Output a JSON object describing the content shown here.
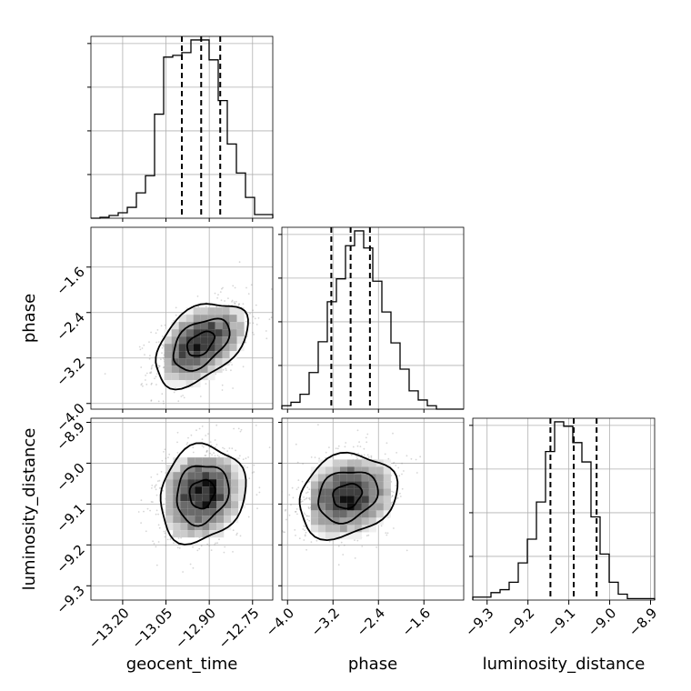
{
  "chart_data": {
    "type": "corner",
    "parameters": [
      "geocent_time",
      "phase",
      "luminosity_distance"
    ],
    "ranges": {
      "geocent_time": [
        -13.31,
        -12.68
      ],
      "phase": [
        -4.1,
        -0.9
      ],
      "luminosity_distance": [
        -9.335,
        -8.89
      ]
    },
    "ticks": {
      "geocent_time": [
        -13.2,
        -13.05,
        -12.9,
        -12.75
      ],
      "phase": [
        -4.0,
        -3.2,
        -2.4,
        -1.6
      ],
      "luminosity_distance": [
        -9.3,
        -9.2,
        -9.1,
        -9.0,
        -8.9
      ]
    },
    "tick_labels": {
      "geocent_time": [
        "−13.20",
        "−13.05",
        "−12.90",
        "−12.75"
      ],
      "phase": [
        "−4.0",
        "−3.2",
        "−2.4",
        "−1.6"
      ],
      "luminosity_distance": [
        "−9.3",
        "−9.2",
        "−9.1",
        "−9.0",
        "−8.9"
      ]
    },
    "quantiles": {
      "geocent_time": [
        -12.995,
        -12.928,
        -12.862
      ],
      "phase": [
        -3.23,
        -2.89,
        -2.55
      ],
      "luminosity_distance": [
        -9.145,
        -9.088,
        -9.032
      ]
    },
    "grid": true,
    "histograms": {
      "geocent_time": {
        "edges": [
          -13.31,
          -13.2785,
          -13.247,
          -13.2155,
          -13.184,
          -13.1525,
          -13.121,
          -13.0895,
          -13.058,
          -13.0265,
          -12.995,
          -12.9635,
          -12.932,
          -12.9005,
          -12.869,
          -12.8375,
          -12.806,
          -12.7745,
          -12.743,
          -12.7115,
          -12.68
        ],
        "counts": [
          0,
          1,
          3,
          6,
          12,
          28,
          47,
          115,
          178,
          180,
          183,
          197,
          197,
          175,
          130,
          82,
          50,
          23,
          4,
          4
        ]
      },
      "phase": {
        "edges": [
          -4.1,
          -3.94,
          -3.78,
          -3.62,
          -3.46,
          -3.3,
          -3.14,
          -2.98,
          -2.82,
          -2.66,
          -2.5,
          -2.34,
          -2.18,
          -2.02,
          -1.86,
          -1.7,
          -1.54,
          -1.38,
          -1.22,
          -1.06,
          -0.9
        ],
        "counts": [
          3,
          6,
          13,
          32,
          59,
          94,
          114,
          143,
          156,
          141,
          112,
          85,
          58,
          35,
          16,
          8,
          3,
          0,
          0,
          0
        ]
      },
      "luminosity_distance": {
        "edges": [
          -9.335,
          -9.31275,
          -9.2905,
          -9.26825,
          -9.246,
          -9.22375,
          -9.2015,
          -9.17925,
          -9.157,
          -9.13475,
          -9.1125,
          -9.09025,
          -9.068,
          -9.04575,
          -9.0235,
          -9.00125,
          -8.979,
          -8.95675,
          -8.9345,
          -8.91225,
          -8.89
        ],
        "counts": [
          2,
          2,
          5,
          7,
          12,
          25,
          41,
          66,
          100,
          120,
          117,
          106,
          93,
          56,
          31,
          12,
          4,
          1,
          1,
          1
        ]
      }
    },
    "contours": {
      "geocent_time_vs_phase": {
        "center": [
          -12.93,
          -2.95
        ],
        "sigma": [
          0.078,
          0.36
        ],
        "rho": 0.45
      },
      "geocent_time_vs_luminosity_distance": {
        "center": [
          -12.925,
          -9.075
        ],
        "sigma": [
          0.072,
          0.058
        ],
        "rho": 0.15
      },
      "phase_vs_luminosity_distance": {
        "center": [
          -2.95,
          -9.08
        ],
        "sigma": [
          0.42,
          0.05
        ],
        "rho": 0.2
      }
    },
    "xlabels": [
      "geocent_time",
      "phase",
      "luminosity_distance"
    ],
    "ylabels": [
      "",
      "phase",
      "luminosity_distance"
    ]
  }
}
